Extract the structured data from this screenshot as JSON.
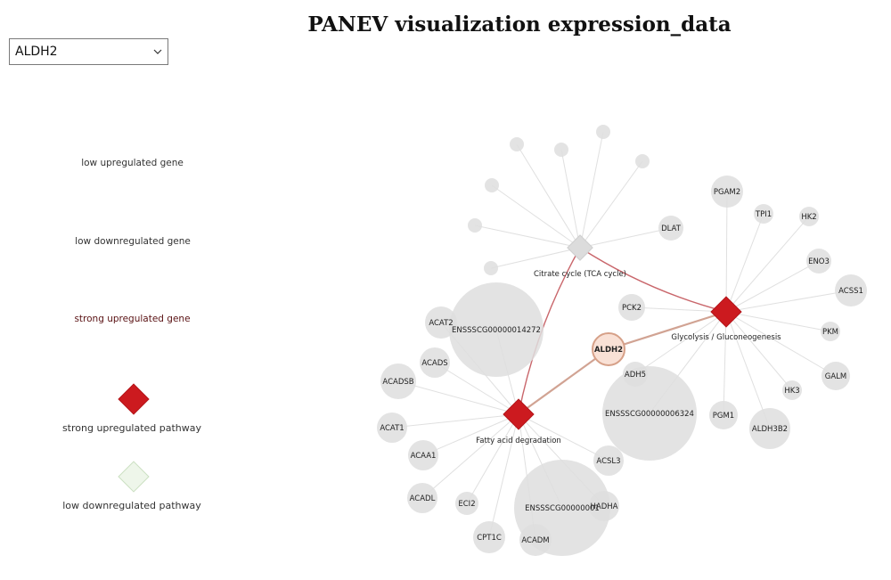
{
  "title": "PANEV visualization expression_data",
  "gene_select": {
    "value": "ALDH2"
  },
  "legend": [
    {
      "label": "low upregulated gene",
      "shape": "ellipse",
      "fill": "#fbe3d9",
      "stroke": "#e7b9a6"
    },
    {
      "label": "low downregulated gene",
      "shape": "ellipse",
      "fill": "#eef6ea",
      "stroke": "#cbe0c2"
    },
    {
      "label": "strong upregulated gene",
      "shape": "ellipse",
      "fill": "#cc1a1f",
      "stroke": "#b3161a"
    },
    {
      "label": "strong upregulated pathway",
      "shape": "diamond",
      "fill": "#cc1a1f",
      "stroke": "#b3161a"
    },
    {
      "label": "low downregulated pathway",
      "shape": "diamond",
      "fill": "#eef6ea",
      "stroke": "#cbe0c2"
    }
  ],
  "colors": {
    "node_gray": "#dedede",
    "edge_gray": "#e0e0e0",
    "edge_red": "#c9666b",
    "edge_tan": "#d1a393",
    "pathway_strong": "#cc1a1f",
    "pathway_low": "#dcdcdc",
    "gene_low_up": "#f9e1d6"
  },
  "network": {
    "pathways": [
      {
        "id": "tca",
        "label": "Citrate cycle (TCA cycle)",
        "state": "low"
      },
      {
        "id": "glyco",
        "label": "Glycolysis / Gluconeogenesis",
        "state": "strong"
      },
      {
        "id": "fatty",
        "label": "Fatty acid degradation",
        "state": "strong"
      }
    ],
    "genes": [
      {
        "label": "",
        "pathway": "tca"
      },
      {
        "label": "",
        "pathway": "tca"
      },
      {
        "label": "",
        "pathway": "tca"
      },
      {
        "label": "",
        "pathway": "tca"
      },
      {
        "label": "",
        "pathway": "tca"
      },
      {
        "label": "",
        "pathway": "tca"
      },
      {
        "label": "",
        "pathway": "tca"
      },
      {
        "label": "DLAT",
        "pathway": "tca"
      },
      {
        "label": "PGAM2",
        "pathway": "glyco"
      },
      {
        "label": "TPI1",
        "pathway": "glyco"
      },
      {
        "label": "HK2",
        "pathway": "glyco"
      },
      {
        "label": "ENO3",
        "pathway": "glyco"
      },
      {
        "label": "ACSS1",
        "pathway": "glyco"
      },
      {
        "label": "PKM",
        "pathway": "glyco"
      },
      {
        "label": "GALM",
        "pathway": "glyco"
      },
      {
        "label": "HK3",
        "pathway": "glyco"
      },
      {
        "label": "ALDH3B2",
        "pathway": "glyco"
      },
      {
        "label": "PGM1",
        "pathway": "glyco"
      },
      {
        "label": "ENSSSCG00000006324",
        "pathway": "glyco"
      },
      {
        "label": "ADH5",
        "pathway": "glyco"
      },
      {
        "label": "PCK2",
        "pathway": "glyco"
      },
      {
        "label": "ENSSSCG00000014272",
        "pathway": "fatty"
      },
      {
        "label": "ACAT2",
        "pathway": "fatty"
      },
      {
        "label": "ACADS",
        "pathway": "fatty"
      },
      {
        "label": "ACADSB",
        "pathway": "fatty"
      },
      {
        "label": "ACAT1",
        "pathway": "fatty"
      },
      {
        "label": "ACAA1",
        "pathway": "fatty"
      },
      {
        "label": "ACADL",
        "pathway": "fatty"
      },
      {
        "label": "ECI2",
        "pathway": "fatty"
      },
      {
        "label": "CPT1C",
        "pathway": "fatty"
      },
      {
        "label": "ACADM",
        "pathway": "fatty"
      },
      {
        "label": "ENSSSCG00000001",
        "pathway": "fatty"
      },
      {
        "label": "HADHA",
        "pathway": "fatty"
      },
      {
        "label": "ACSL3",
        "pathway": "fatty"
      },
      {
        "label": "ALDH2",
        "pathway": "glyco,fatty",
        "state": "low_up"
      }
    ],
    "pathway_links": [
      {
        "from": "tca",
        "to": "glyco",
        "color": "red"
      },
      {
        "from": "tca",
        "to": "fatty",
        "color": "red"
      },
      {
        "from": "glyco",
        "to": "ALDH2",
        "color": "tan"
      },
      {
        "from": "fatty",
        "to": "ALDH2",
        "color": "tan"
      }
    ]
  }
}
